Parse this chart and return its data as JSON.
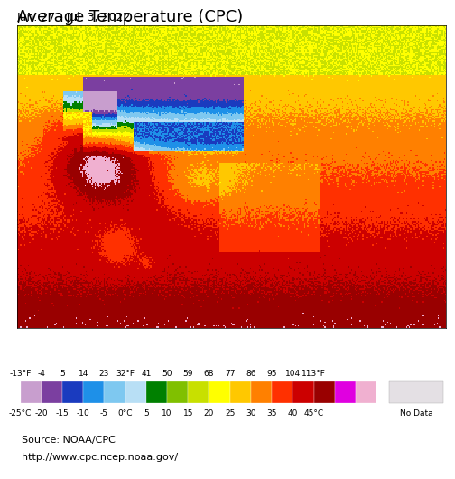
{
  "title": "Average Temperature (CPC)",
  "subtitle": "Jun. 27 - Jul. 3, 2022",
  "source_line1": "Source: NOAA/CPC",
  "source_line2": "http://www.cpc.ncep.noaa.gov/",
  "map_lon_min": 55,
  "map_lon_max": 140,
  "map_lat_min": -5,
  "map_lat_max": 55,
  "background_color": "#dcdce8",
  "ocean_color": "#b8daf0",
  "colorbar_colors": [
    "#c89ece",
    "#7b3fa0",
    "#1a3bbf",
    "#1e90e8",
    "#7ec8f0",
    "#b8dff5",
    "#008000",
    "#80c000",
    "#c8e000",
    "#ffff00",
    "#ffc800",
    "#ff8000",
    "#ff3000",
    "#cc0000",
    "#990000",
    "#e000e0",
    "#f0b0d0"
  ],
  "temp_bounds_c": [
    -25,
    -20,
    -15,
    -10,
    -5,
    0,
    5,
    10,
    15,
    20,
    25,
    30,
    35,
    40,
    45,
    50
  ],
  "colorbar_labels_f": [
    "-13°F",
    "-4",
    "5",
    "14",
    "23",
    "32°F",
    "41",
    "50",
    "59",
    "68",
    "77",
    "86",
    "95",
    "104",
    "113°F"
  ],
  "colorbar_labels_c": [
    "-25°C",
    "-20",
    "-15",
    "-10",
    "-5",
    "0°C",
    "5",
    "10",
    "15",
    "20",
    "25",
    "30",
    "35",
    "40",
    "45°C"
  ],
  "no_data_color": "#e4e0e4",
  "title_fontsize": 13,
  "subtitle_fontsize": 9,
  "label_fontsize": 6.5,
  "source_fontsize": 8,
  "border_color": "black",
  "state_border_color": "#6090b0",
  "border_linewidth": 0.9,
  "state_linewidth": 0.4
}
